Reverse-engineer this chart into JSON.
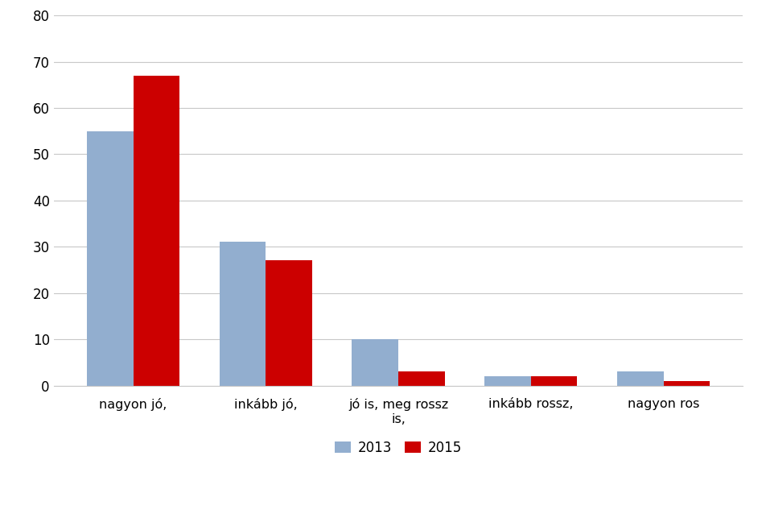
{
  "categories": [
    "nagyon jó,",
    "inkább jó,",
    "jó is, meg rossz\nis,",
    "inkább rossz,",
    "nagyon ros"
  ],
  "values_2013": [
    55,
    31,
    10,
    2,
    3
  ],
  "values_2015": [
    67,
    27,
    3,
    2,
    1
  ],
  "color_2013": "#92AECF",
  "color_2015": "#CC0000",
  "legend_labels": [
    "2013",
    "2015"
  ],
  "ylim": [
    0,
    80
  ],
  "yticks": [
    0,
    10,
    20,
    30,
    40,
    50,
    60,
    70,
    80
  ],
  "bar_width": 0.35,
  "background_color": "#FFFFFF",
  "grid_color": "#C8C8C8"
}
